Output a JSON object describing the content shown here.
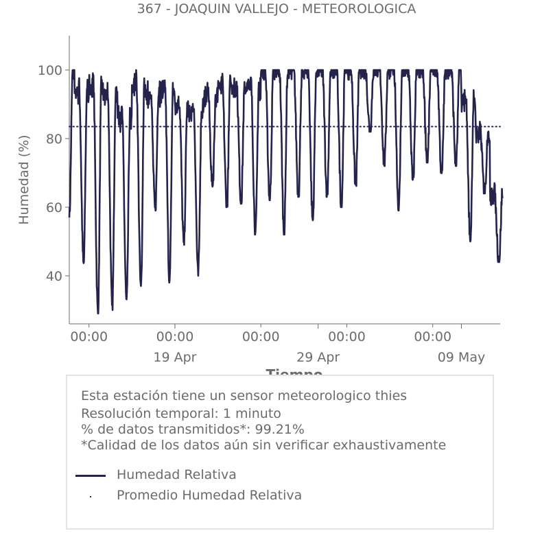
{
  "chart_data": {
    "type": "line",
    "title": "367 - JOAQUIN VALLEJO - METEOROLOGICA",
    "xlabel": "Tiempo",
    "ylabel": "Humedad (%)",
    "ylim": [
      26,
      110
    ],
    "yticks": [
      40,
      60,
      80,
      100
    ],
    "xlim": [
      "2025-04-11T15:00",
      "2025-05-11T17:00"
    ],
    "xticks_minor": [
      {
        "date": "2025-04-13T00:00",
        "label": "00:00"
      },
      {
        "date": "2025-04-19T00:00",
        "label": "00:00"
      },
      {
        "date": "2025-04-25T00:00",
        "label": "00:00"
      },
      {
        "date": "2025-05-01T00:00",
        "label": "00:00"
      },
      {
        "date": "2025-05-07T00:00",
        "label": "00:00"
      }
    ],
    "xticks_major": [
      {
        "date": "2025-04-19T00:00",
        "label": "19 Apr"
      },
      {
        "date": "2025-04-29T00:00",
        "label": "29 Apr"
      },
      {
        "date": "2025-05-09T00:00",
        "label": "09 May"
      }
    ],
    "grid": false,
    "series": [
      {
        "name": "Humedad Relativa",
        "color": "#23234b",
        "style": "solid",
        "daily_min": [
          {
            "date": "2025-04-11",
            "value": 57
          },
          {
            "date": "2025-04-12",
            "value": 43
          },
          {
            "date": "2025-04-13",
            "value": 29
          },
          {
            "date": "2025-04-14",
            "value": 30
          },
          {
            "date": "2025-04-15",
            "value": 32
          },
          {
            "date": "2025-04-16",
            "value": 36
          },
          {
            "date": "2025-04-17",
            "value": 59
          },
          {
            "date": "2025-04-18",
            "value": 38
          },
          {
            "date": "2025-04-19",
            "value": 49
          },
          {
            "date": "2025-04-20",
            "value": 40
          },
          {
            "date": "2025-04-21",
            "value": 66
          },
          {
            "date": "2025-04-22",
            "value": 60
          },
          {
            "date": "2025-04-23",
            "value": 61
          },
          {
            "date": "2025-04-24",
            "value": 52
          },
          {
            "date": "2025-04-25",
            "value": 62
          },
          {
            "date": "2025-04-26",
            "value": 52
          },
          {
            "date": "2025-04-27",
            "value": 63
          },
          {
            "date": "2025-04-28",
            "value": 56
          },
          {
            "date": "2025-04-29",
            "value": 63
          },
          {
            "date": "2025-04-30",
            "value": 60
          },
          {
            "date": "2025-05-01",
            "value": 66
          },
          {
            "date": "2025-05-02",
            "value": 82
          },
          {
            "date": "2025-05-03",
            "value": 72
          },
          {
            "date": "2025-05-04",
            "value": 59
          },
          {
            "date": "2025-05-05",
            "value": 67
          },
          {
            "date": "2025-05-06",
            "value": 73
          },
          {
            "date": "2025-05-07",
            "value": 69
          },
          {
            "date": "2025-05-08",
            "value": 72
          },
          {
            "date": "2025-05-09",
            "value": 50
          },
          {
            "date": "2025-05-10",
            "value": 64
          },
          {
            "date": "2025-05-11",
            "value": 44
          }
        ],
        "daily_max": [
          {
            "date": "2025-04-11",
            "value": 100
          },
          {
            "date": "2025-04-12",
            "value": 96
          },
          {
            "date": "2025-04-13",
            "value": 97
          },
          {
            "date": "2025-04-14",
            "value": 95
          },
          {
            "date": "2025-04-15",
            "value": 88
          },
          {
            "date": "2025-04-16",
            "value": 98
          },
          {
            "date": "2025-04-17",
            "value": 95
          },
          {
            "date": "2025-04-18",
            "value": 96
          },
          {
            "date": "2025-04-19",
            "value": 91
          },
          {
            "date": "2025-04-20",
            "value": 90
          },
          {
            "date": "2025-04-21",
            "value": 95
          },
          {
            "date": "2025-04-22",
            "value": 97
          },
          {
            "date": "2025-04-23",
            "value": 96
          },
          {
            "date": "2025-04-24",
            "value": 97
          },
          {
            "date": "2025-04-25",
            "value": 100
          },
          {
            "date": "2025-04-26",
            "value": 100
          },
          {
            "date": "2025-04-27",
            "value": 100
          },
          {
            "date": "2025-04-28",
            "value": 100
          },
          {
            "date": "2025-04-29",
            "value": 100
          },
          {
            "date": "2025-04-30",
            "value": 100
          },
          {
            "date": "2025-05-01",
            "value": 100
          },
          {
            "date": "2025-05-02",
            "value": 100
          },
          {
            "date": "2025-05-03",
            "value": 100
          },
          {
            "date": "2025-05-04",
            "value": 100
          },
          {
            "date": "2025-05-05",
            "value": 100
          },
          {
            "date": "2025-05-06",
            "value": 100
          },
          {
            "date": "2025-05-07",
            "value": 100
          },
          {
            "date": "2025-05-08",
            "value": 100
          },
          {
            "date": "2025-05-09",
            "value": 93
          },
          {
            "date": "2025-05-10",
            "value": 83
          },
          {
            "date": "2025-05-11",
            "value": 65
          }
        ]
      },
      {
        "name": "Promedio Humedad Relativa",
        "color": "#23234b",
        "style": "dotted",
        "value": 83.5
      }
    ]
  },
  "info": {
    "line1": "Esta estación tiene un sensor meteorologico thies",
    "line2": "Resolución temporal: 1 minuto",
    "line3": "% de datos transmitidos*: 99.21%",
    "line4": "*Calidad de los datos aún sin verificar exhaustivamente"
  },
  "legend": {
    "item1": "Humedad Relativa",
    "item2": "Promedio Humedad Relativa"
  }
}
